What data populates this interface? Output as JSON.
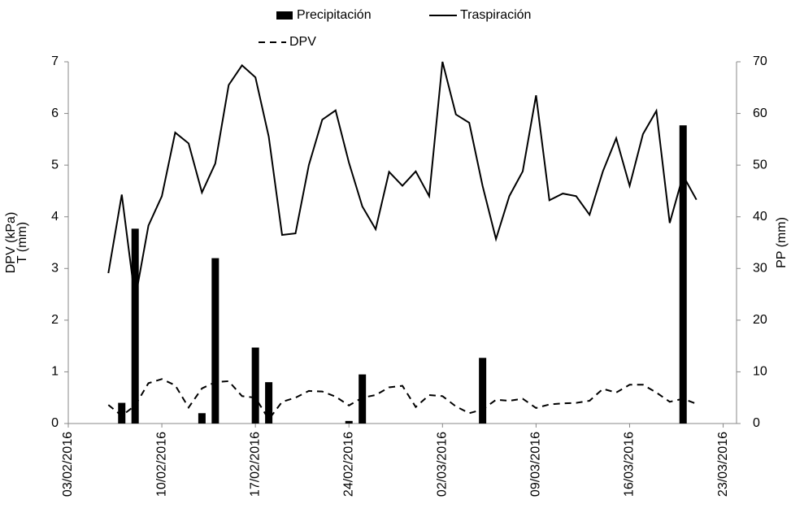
{
  "chart_data": {
    "type": "combo",
    "ylabel": [
      "DPV (kPa)",
      "T (mm)"
    ],
    "y2label": "PP (mm)",
    "xlim": [
      "2016-02-03",
      "2016-03-24"
    ],
    "xticks": [
      {
        "value": "2016-02-03",
        "label": "03/02/2016"
      },
      {
        "value": "2016-02-10",
        "label": "10/02/2016"
      },
      {
        "value": "2016-02-17",
        "label": "17/02/2016"
      },
      {
        "value": "2016-02-24",
        "label": "24/02/2016"
      },
      {
        "value": "2016-03-02",
        "label": "02/03/2016"
      },
      {
        "value": "2016-03-09",
        "label": "09/03/2016"
      },
      {
        "value": "2016-03-16",
        "label": "16/03/2016"
      },
      {
        "value": "2016-03-23",
        "label": "23/03/2016"
      }
    ],
    "ylim": [
      0,
      7
    ],
    "yticks": [
      0,
      1,
      2,
      3,
      4,
      5,
      6,
      7
    ],
    "y2lim": [
      0,
      70
    ],
    "y2ticks": [
      0,
      10,
      20,
      30,
      40,
      50,
      60,
      70
    ],
    "x": [
      "2016-02-06",
      "2016-02-07",
      "2016-02-08",
      "2016-02-09",
      "2016-02-10",
      "2016-02-11",
      "2016-02-12",
      "2016-02-13",
      "2016-02-14",
      "2016-02-15",
      "2016-02-16",
      "2016-02-17",
      "2016-02-18",
      "2016-02-19",
      "2016-02-20",
      "2016-02-21",
      "2016-02-22",
      "2016-02-23",
      "2016-02-24",
      "2016-02-25",
      "2016-02-26",
      "2016-02-27",
      "2016-02-28",
      "2016-02-29",
      "2016-03-01",
      "2016-03-02",
      "2016-03-03",
      "2016-03-04",
      "2016-03-05",
      "2016-03-06",
      "2016-03-07",
      "2016-03-08",
      "2016-03-09",
      "2016-03-10",
      "2016-03-11",
      "2016-03-12",
      "2016-03-13",
      "2016-03-14",
      "2016-03-15",
      "2016-03-16",
      "2016-03-17",
      "2016-03-18",
      "2016-03-19",
      "2016-03-20",
      "2016-03-21"
    ],
    "series": [
      {
        "name": "Precipitación",
        "type": "bar",
        "axis": "y2",
        "color": "#000000",
        "x": [
          "2016-02-07",
          "2016-02-08",
          "2016-02-13",
          "2016-02-14",
          "2016-02-17",
          "2016-02-18",
          "2016-02-24",
          "2016-02-25",
          "2016-03-05",
          "2016-03-20"
        ],
        "values": [
          4,
          37.7,
          2,
          32,
          14.7,
          8,
          0.5,
          9.5,
          12.7,
          57.7
        ]
      },
      {
        "name": "Traspiración",
        "type": "line",
        "style": "solid",
        "color": "#000000",
        "values": [
          2.91,
          4.43,
          2.4,
          3.83,
          4.4,
          5.63,
          5.42,
          4.47,
          5.03,
          6.55,
          6.93,
          6.7,
          5.55,
          3.65,
          3.68,
          5.0,
          5.88,
          6.06,
          5.05,
          4.2,
          3.76,
          4.87,
          4.6,
          4.88,
          4.4,
          7.0,
          5.98,
          5.82,
          4.6,
          3.57,
          4.4,
          4.88,
          6.35,
          4.32,
          4.45,
          4.4,
          4.04,
          4.88,
          5.52,
          4.6,
          5.6,
          6.05,
          3.88,
          4.8,
          4.33
        ]
      },
      {
        "name": "DPV",
        "type": "line",
        "style": "dashed",
        "color": "#000000",
        "values": [
          0.36,
          0.15,
          0.35,
          0.78,
          0.86,
          0.74,
          0.31,
          0.68,
          0.8,
          0.82,
          0.53,
          0.5,
          0.08,
          0.42,
          0.5,
          0.63,
          0.62,
          0.52,
          0.35,
          0.5,
          0.55,
          0.7,
          0.73,
          0.32,
          0.55,
          0.53,
          0.33,
          0.2,
          0.27,
          0.46,
          0.44,
          0.48,
          0.3,
          0.37,
          0.39,
          0.4,
          0.44,
          0.67,
          0.6,
          0.75,
          0.75,
          0.6,
          0.42,
          0.48,
          0.38
        ]
      }
    ]
  }
}
